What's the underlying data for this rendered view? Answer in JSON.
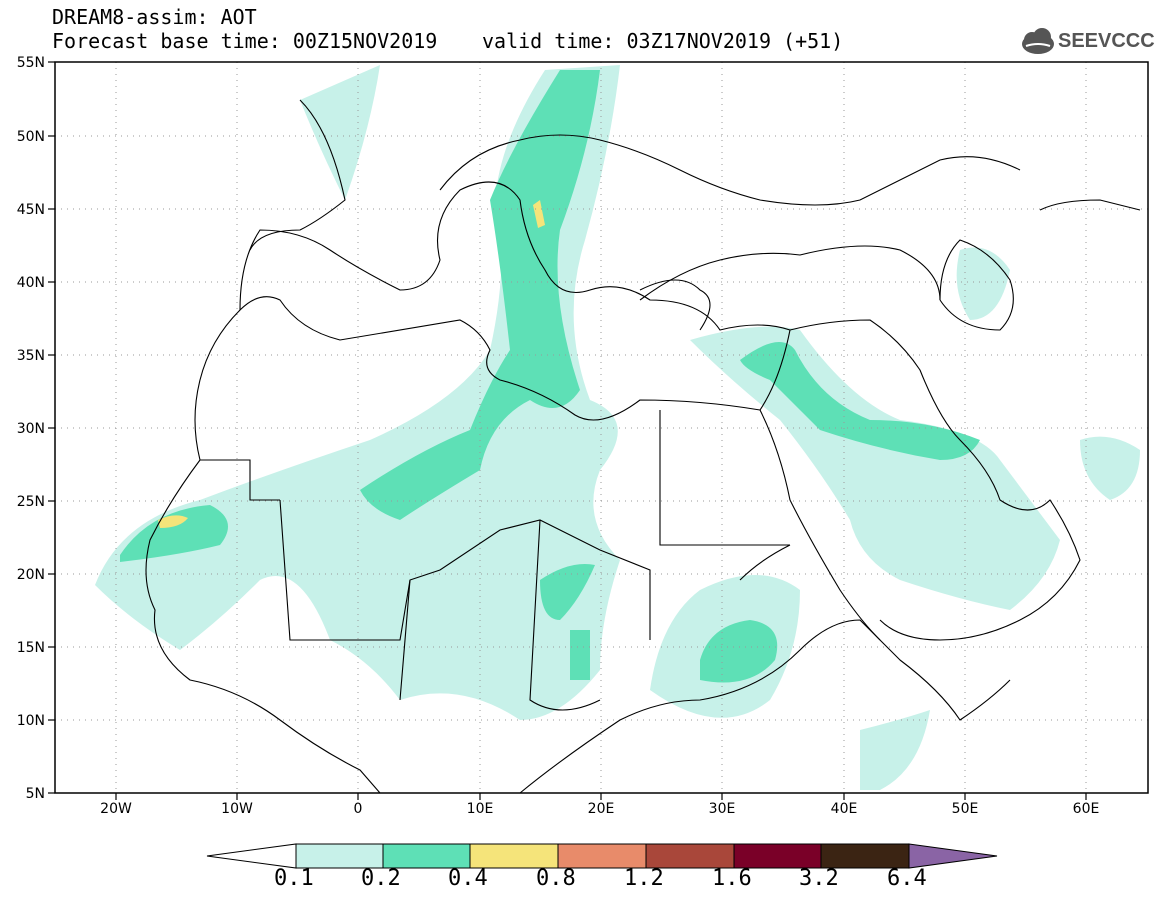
{
  "header": {
    "line1": "DREAM8-assim: AOT",
    "line2": "Forecast base time: 00Z15NOV2019",
    "line3": "valid time: 03Z17NOV2019 (+51)"
  },
  "logo": {
    "text": "SEEVCCC",
    "icon": "cloud-icon"
  },
  "map": {
    "lon_range": [
      -25,
      65
    ],
    "lat_range": [
      5,
      55
    ],
    "lat_labels": [
      "55N",
      "50N",
      "45N",
      "40N",
      "35N",
      "30N",
      "25N",
      "20N",
      "15N",
      "10N",
      "5N"
    ],
    "lon_labels": [
      "20W",
      "10W",
      "0",
      "10E",
      "20E",
      "30E",
      "40E",
      "50E",
      "60E"
    ],
    "variable": "AOT",
    "gridlines": "dotted"
  },
  "colorbar": {
    "ticks": [
      "0.1",
      "0.2",
      "0.4",
      "0.8",
      "1.2",
      "1.6",
      "3.2",
      "6.4"
    ],
    "colors": [
      "#ffffff",
      "#c7f1e9",
      "#5ee0b6",
      "#f5e47a",
      "#e88b6a",
      "#a9473a",
      "#7a0028",
      "#3b2413",
      "#8a64a5"
    ]
  }
}
